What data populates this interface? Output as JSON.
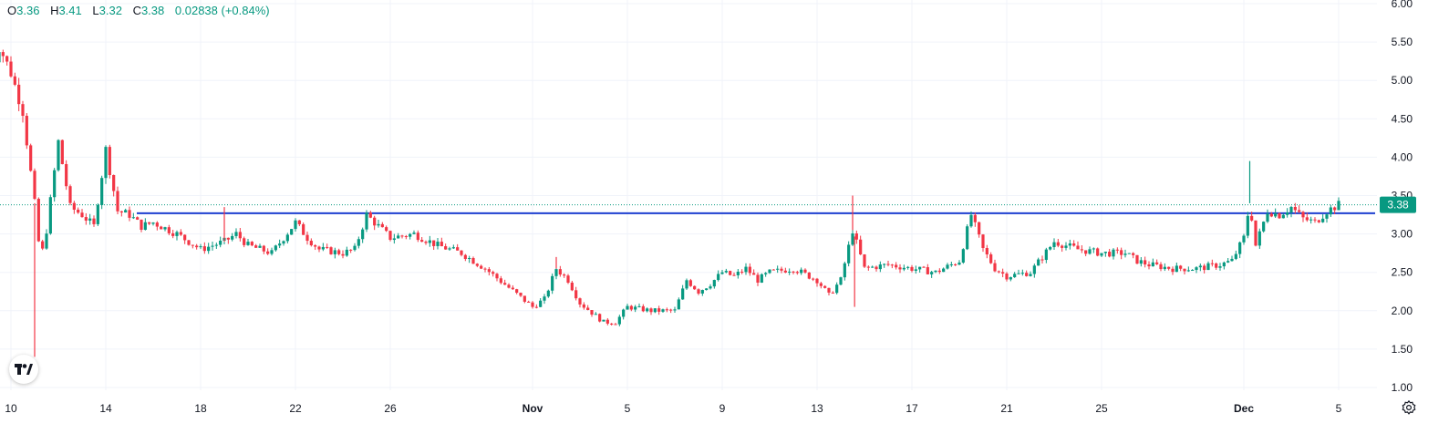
{
  "legend": {
    "o_key": "O",
    "o_val": "3.36",
    "h_key": "H",
    "h_val": "3.41",
    "l_key": "L",
    "l_val": "3.32",
    "c_key": "C",
    "c_val": "3.38",
    "change": "0.02838 (+0.84%)"
  },
  "colors": {
    "up": "#089981",
    "down": "#f23645",
    "hline": "#1e3fd0",
    "last_price_line": "#089981",
    "grid": "#f0f3fa",
    "text": "#131722"
  },
  "icons": {
    "logo": "tradingview-logo-icon",
    "settings": "gear-icon"
  },
  "chart_data": {
    "type": "candlestick",
    "y_ticks": [
      "6.00",
      "5.50",
      "5.00",
      "4.50",
      "4.00",
      "3.50",
      "3.00",
      "2.50",
      "2.00",
      "1.50",
      "1.00"
    ],
    "ylim": [
      1.0,
      6.0
    ],
    "x_ticks": [
      {
        "label": "10",
        "date": "2023-10-10",
        "bold": false
      },
      {
        "label": "14",
        "date": "2023-10-14",
        "bold": false
      },
      {
        "label": "18",
        "date": "2023-10-18",
        "bold": false
      },
      {
        "label": "22",
        "date": "2023-10-22",
        "bold": false
      },
      {
        "label": "26",
        "date": "2023-10-26",
        "bold": false
      },
      {
        "label": "Nov",
        "date": "2023-11-01",
        "bold": true
      },
      {
        "label": "5",
        "date": "2023-11-05",
        "bold": false
      },
      {
        "label": "9",
        "date": "2023-11-09",
        "bold": false
      },
      {
        "label": "13",
        "date": "2023-11-13",
        "bold": false
      },
      {
        "label": "17",
        "date": "2023-11-17",
        "bold": false
      },
      {
        "label": "21",
        "date": "2023-11-21",
        "bold": false
      },
      {
        "label": "25",
        "date": "2023-11-25",
        "bold": false
      },
      {
        "label": "Dec",
        "date": "2023-12-01",
        "bold": true
      },
      {
        "label": "5",
        "date": "2023-12-05",
        "bold": false
      }
    ],
    "horizontal_line": 3.27,
    "last_price": "3.38",
    "price_path": [
      [
        "2023-10-09T00:00",
        4.95
      ],
      [
        "2023-10-09T12:00",
        5.45
      ],
      [
        "2023-10-10T00:00",
        5.1
      ],
      [
        "2023-10-10T12:00",
        4.6
      ],
      [
        "2023-10-11T00:00",
        3.4
      ],
      [
        "2023-10-11T06:00",
        2.65
      ],
      [
        "2023-10-11T12:00",
        3.05
      ],
      [
        "2023-10-12T00:00",
        4.2
      ],
      [
        "2023-10-12T12:00",
        3.35
      ],
      [
        "2023-10-13T00:00",
        3.25
      ],
      [
        "2023-10-13T12:00",
        3.1
      ],
      [
        "2023-10-14T00:00",
        4.1
      ],
      [
        "2023-10-14T12:00",
        3.3
      ],
      [
        "2023-10-15T00:00",
        3.25
      ],
      [
        "2023-10-15T12:00",
        3.1
      ],
      [
        "2023-10-16T00:00",
        3.15
      ],
      [
        "2023-10-17T00:00",
        3.0
      ],
      [
        "2023-10-18T00:00",
        2.8
      ],
      [
        "2023-10-19T00:00",
        2.9
      ],
      [
        "2023-10-19T12:00",
        3.0
      ],
      [
        "2023-10-20T00:00",
        2.85
      ],
      [
        "2023-10-21T00:00",
        2.75
      ],
      [
        "2023-10-22T00:00",
        3.15
      ],
      [
        "2023-10-22T12:00",
        2.95
      ],
      [
        "2023-10-23T00:00",
        2.8
      ],
      [
        "2023-10-24T00:00",
        2.75
      ],
      [
        "2023-10-24T12:00",
        2.8
      ],
      [
        "2023-10-25T00:00",
        3.25
      ],
      [
        "2023-10-25T12:00",
        3.1
      ],
      [
        "2023-10-26T00:00",
        2.95
      ],
      [
        "2023-10-27T00:00",
        3.0
      ],
      [
        "2023-10-28T00:00",
        2.85
      ],
      [
        "2023-10-29T00:00",
        2.75
      ],
      [
        "2023-10-30T00:00",
        2.55
      ],
      [
        "2023-10-31T00:00",
        2.3
      ],
      [
        "2023-11-01T00:00",
        2.05
      ],
      [
        "2023-11-01T12:00",
        2.15
      ],
      [
        "2023-11-02T00:00",
        2.55
      ],
      [
        "2023-11-02T12:00",
        2.4
      ],
      [
        "2023-11-03T00:00",
        2.1
      ],
      [
        "2023-11-04T00:00",
        1.85
      ],
      [
        "2023-11-04T12:00",
        1.85
      ],
      [
        "2023-11-05T00:00",
        2.05
      ],
      [
        "2023-11-06T00:00",
        2.0
      ],
      [
        "2023-11-07T00:00",
        2.0
      ],
      [
        "2023-11-07T12:00",
        2.4
      ],
      [
        "2023-11-08T00:00",
        2.25
      ],
      [
        "2023-11-08T12:00",
        2.35
      ],
      [
        "2023-11-09T00:00",
        2.5
      ],
      [
        "2023-11-09T12:00",
        2.45
      ],
      [
        "2023-11-10T00:00",
        2.55
      ],
      [
        "2023-11-10T12:00",
        2.4
      ],
      [
        "2023-11-11T00:00",
        2.5
      ],
      [
        "2023-11-12T00:00",
        2.55
      ],
      [
        "2023-11-13T00:00",
        2.4
      ],
      [
        "2023-11-13T12:00",
        2.2
      ],
      [
        "2023-11-14T00:00",
        2.4
      ],
      [
        "2023-11-14T12:00",
        3.05
      ],
      [
        "2023-11-15T00:00",
        2.55
      ],
      [
        "2023-11-16T00:00",
        2.6
      ],
      [
        "2023-11-17T00:00",
        2.55
      ],
      [
        "2023-11-18T00:00",
        2.5
      ],
      [
        "2023-11-19T00:00",
        2.65
      ],
      [
        "2023-11-19T12:00",
        3.25
      ],
      [
        "2023-11-20T00:00",
        2.8
      ],
      [
        "2023-11-20T12:00",
        2.55
      ],
      [
        "2023-11-21T00:00",
        2.45
      ],
      [
        "2023-11-22T00:00",
        2.5
      ],
      [
        "2023-11-22T12:00",
        2.7
      ],
      [
        "2023-11-23T00:00",
        2.9
      ],
      [
        "2023-11-24T00:00",
        2.8
      ],
      [
        "2023-11-25T00:00",
        2.75
      ],
      [
        "2023-11-26T00:00",
        2.75
      ],
      [
        "2023-11-26T12:00",
        2.65
      ],
      [
        "2023-11-27T00:00",
        2.6
      ],
      [
        "2023-11-28T00:00",
        2.55
      ],
      [
        "2023-11-29T00:00",
        2.55
      ],
      [
        "2023-11-30T00:00",
        2.6
      ],
      [
        "2023-11-30T12:00",
        2.65
      ],
      [
        "2023-12-01T00:00",
        2.95
      ],
      [
        "2023-12-01T06:00",
        3.4
      ],
      [
        "2023-12-01T12:00",
        2.85
      ],
      [
        "2023-12-02T00:00",
        3.3
      ],
      [
        "2023-12-02T12:00",
        3.25
      ],
      [
        "2023-12-03T00:00",
        3.35
      ],
      [
        "2023-12-03T12:00",
        3.2
      ],
      [
        "2023-12-04T00:00",
        3.15
      ],
      [
        "2023-12-04T12:00",
        3.3
      ],
      [
        "2023-12-05T00:00",
        3.38
      ]
    ],
    "spike_highs": [
      [
        "2023-10-11T00:00",
        1.4
      ],
      [
        "2023-11-14T12:00",
        3.5
      ],
      [
        "2023-11-14T14:00",
        2.05
      ],
      [
        "2023-10-19T00:00",
        3.35
      ],
      [
        "2023-12-01T06:00",
        3.95
      ],
      [
        "2023-11-02T00:00",
        2.7
      ]
    ]
  }
}
